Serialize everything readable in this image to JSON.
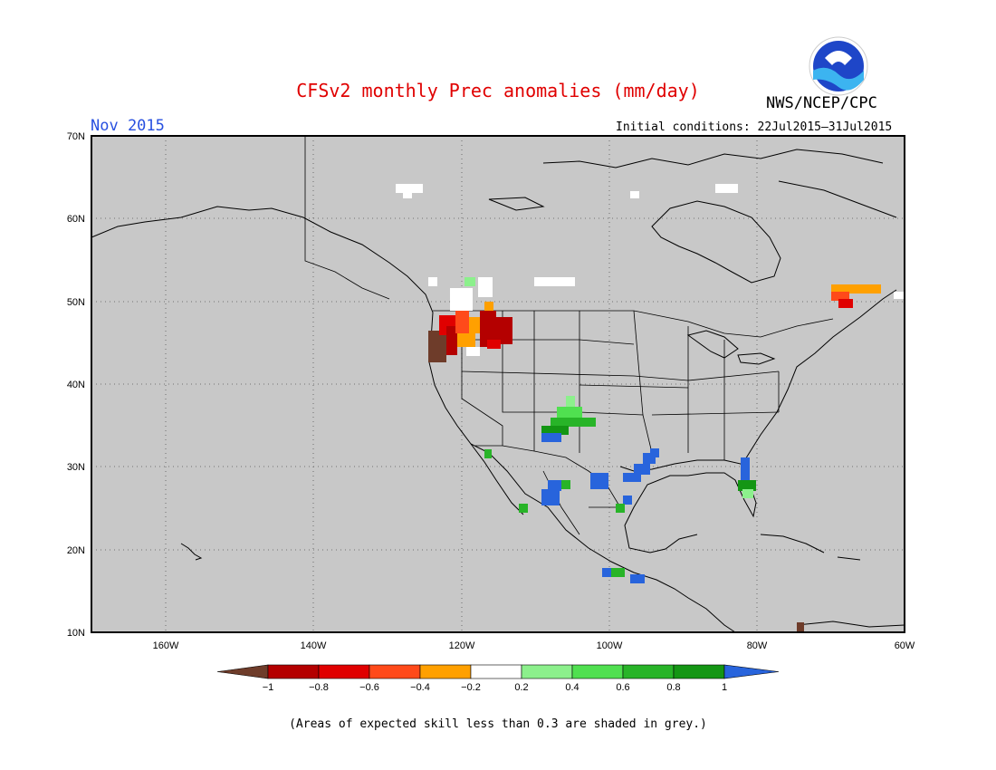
{
  "header": {
    "title": "CFSv2 monthly Prec anomalies (mm/day)",
    "organization": "NWS/NCEP/CPC",
    "logo_text": "NOAA",
    "month": "Nov 2015",
    "initial_conditions": "Initial conditions: 22Jul2015–31Jul2015"
  },
  "map": {
    "lat_labels": [
      "70N",
      "60N",
      "50N",
      "40N",
      "30N",
      "20N",
      "10N"
    ],
    "lon_labels": [
      "160W",
      "140W",
      "120W",
      "100W",
      "80W",
      "60W"
    ],
    "extent": {
      "lon_min": -170,
      "lon_max": -60,
      "lat_min": 10,
      "lat_max": 70
    },
    "background_color": "#c8c8c8"
  },
  "legend": {
    "tick_labels": [
      "−1",
      "−0.8",
      "−0.6",
      "−0.4",
      "−0.2",
      "0.2",
      "0.4",
      "0.6",
      "0.8",
      "1"
    ],
    "colors": [
      "#6e3c2a",
      "#b40000",
      "#e00000",
      "#ff4a1a",
      "#ffa000",
      "#ffffff",
      "#8cf08c",
      "#50e050",
      "#28b428",
      "#149614",
      "#2864dc"
    ]
  },
  "footnote": "(Areas of expected skill less than 0.3 are shaded in grey.)"
}
